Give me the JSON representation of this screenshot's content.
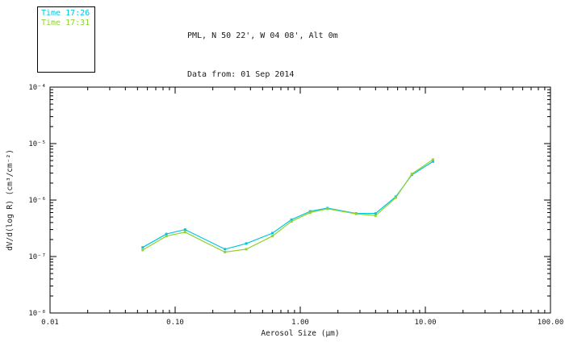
{
  "header": {
    "line1": "PML, N 50 22', W 04 08', Alt 0m",
    "line2": "Data from: 01 Sep 2014"
  },
  "legend": {
    "items": [
      {
        "label": "Time 17:26",
        "color": "#00C6E0"
      },
      {
        "label": "Time 17:31",
        "color": "#8FD32E"
      }
    ]
  },
  "chart_data": {
    "type": "line",
    "title": "",
    "xlabel": "Aerosol Size (μm)",
    "ylabel": "dV/d(log R) (cm³/cm⁻²)",
    "xscale": "log",
    "yscale": "log",
    "xlim": [
      0.01,
      100
    ],
    "ylim": [
      1e-08,
      0.0001
    ],
    "grid": false,
    "legend_position": "top-left",
    "x_tick_labels": [
      "0.01",
      "0.10",
      "1.00",
      "10.00",
      "100.00"
    ],
    "y_tick_labels": [
      "10⁻⁸",
      "10⁻⁷",
      "10⁻⁶",
      "10⁻⁵",
      "10⁻⁴"
    ],
    "x": [
      0.055,
      0.085,
      0.12,
      0.25,
      0.37,
      0.6,
      0.85,
      1.2,
      1.65,
      2.8,
      4.0,
      5.8,
      7.8,
      11.5
    ],
    "series": [
      {
        "name": "Time 17:26",
        "color": "#00C6E0",
        "values": [
          1.45e-07,
          2.5e-07,
          3e-07,
          1.35e-07,
          1.7e-07,
          2.6e-07,
          4.5e-07,
          6.3e-07,
          7.2e-07,
          5.8e-07,
          5.8e-07,
          1.15e-06,
          2.8e-06,
          4.8e-06
        ]
      },
      {
        "name": "Time 17:31",
        "color": "#8FD32E",
        "values": [
          1.3e-07,
          2.3e-07,
          2.7e-07,
          1.2e-07,
          1.35e-07,
          2.3e-07,
          4.2e-07,
          6e-07,
          7e-07,
          5.7e-07,
          5.3e-07,
          1.1e-06,
          2.9e-06,
          5.2e-06
        ]
      }
    ]
  }
}
